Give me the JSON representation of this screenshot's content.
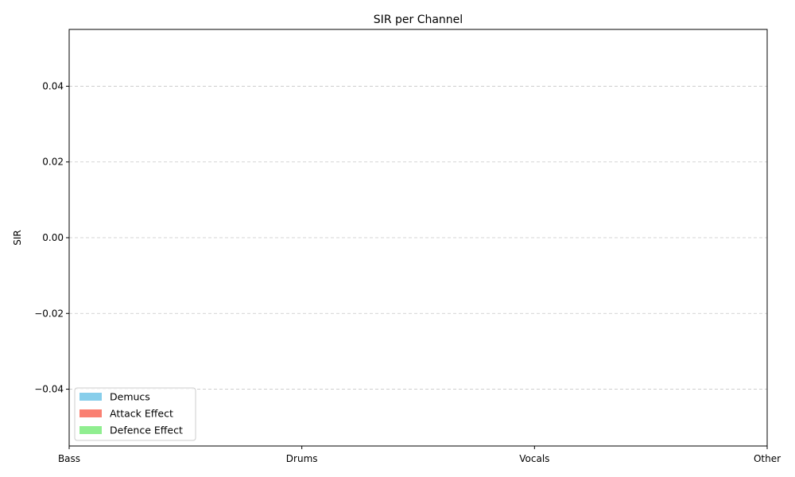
{
  "chart_data": {
    "type": "bar",
    "title": "SIR per Channel",
    "xlabel": "",
    "ylabel": "SIR",
    "categories": [
      "Bass",
      "Drums",
      "Vocals",
      "Other"
    ],
    "ylim": [
      -0.055,
      0.055
    ],
    "yticks": [
      -0.04,
      -0.02,
      0.0,
      0.02,
      0.04
    ],
    "ytick_labels": [
      "−0.04",
      "−0.02",
      "0.00",
      "0.02",
      "0.04"
    ],
    "grid": {
      "y": true,
      "x": false,
      "style": "dashed"
    },
    "legend_position": "lower-left",
    "series": [
      {
        "name": "Demucs",
        "color": "#87CEEB",
        "values": [
          0,
          0,
          0,
          0
        ]
      },
      {
        "name": "Attack Effect",
        "color": "#FA8072",
        "values": [
          0,
          0,
          0,
          0
        ]
      },
      {
        "name": "Defence Effect",
        "color": "#90EE90",
        "values": [
          0,
          0,
          0,
          0
        ]
      }
    ]
  }
}
